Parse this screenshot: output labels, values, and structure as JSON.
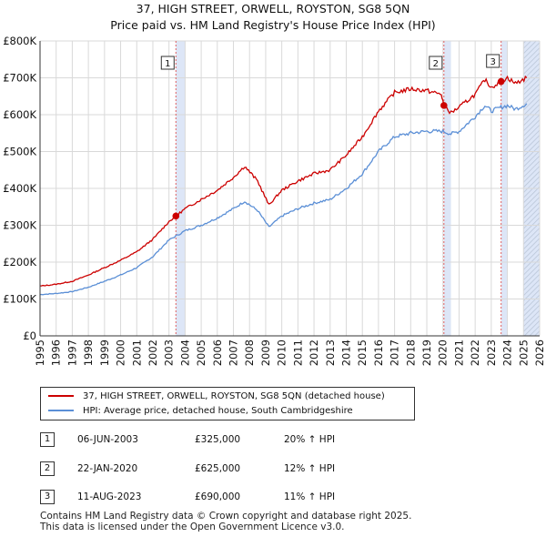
{
  "title_line1": "37, HIGH STREET, ORWELL, ROYSTON, SG8 5QN",
  "title_line2": "Price paid vs. HM Land Registry's House Price Index (HPI)",
  "chart_data": {
    "type": "line",
    "xlim": [
      1995,
      2026
    ],
    "ylim": [
      0,
      800000
    ],
    "y_ticks": [
      0,
      100000,
      200000,
      300000,
      400000,
      500000,
      600000,
      700000,
      800000
    ],
    "y_tick_labels": [
      "£0",
      "£100K",
      "£200K",
      "£300K",
      "£400K",
      "£500K",
      "£600K",
      "£700K",
      "£800K"
    ],
    "x_ticks": [
      "1995",
      "1996",
      "1997",
      "1998",
      "1999",
      "2000",
      "2001",
      "2002",
      "2003",
      "2004",
      "2005",
      "2006",
      "2007",
      "2008",
      "2009",
      "2010",
      "2011",
      "2012",
      "2013",
      "2014",
      "2015",
      "2016",
      "2017",
      "2018",
      "2019",
      "2020",
      "2021",
      "2022",
      "2023",
      "2024",
      "2025",
      "2026"
    ],
    "grid": true,
    "colors": {
      "property": "#cc0000",
      "hpi": "#5b8fd6",
      "shade": "#dde6f7",
      "hatch": "#b8c4d6",
      "vline": "#e06060",
      "grid": "#d9d9d9"
    },
    "series": [
      {
        "name": "37, HIGH STREET, ORWELL, ROYSTON, SG8 5QN (detached house)",
        "x": [
          1995.0,
          1996.0,
          1997.0,
          1998.0,
          1999.0,
          2000.0,
          2001.0,
          2002.0,
          2003.0,
          2003.43,
          2004.0,
          2005.0,
          2006.0,
          2007.0,
          2007.7,
          2008.5,
          2009.2,
          2010.0,
          2011.0,
          2012.0,
          2013.0,
          2014.0,
          2015.0,
          2016.0,
          2017.0,
          2018.0,
          2019.0,
          2019.9,
          2020.06,
          2020.5,
          2021.0,
          2022.0,
          2022.6,
          2023.0,
          2023.61,
          2024.0,
          2024.5,
          2025.2
        ],
        "values": [
          135000,
          140000,
          148000,
          165000,
          185000,
          205000,
          228000,
          262000,
          310000,
          325000,
          345000,
          370000,
          395000,
          430000,
          460000,
          420000,
          355000,
          395000,
          420000,
          440000,
          450000,
          490000,
          540000,
          610000,
          660000,
          670000,
          665000,
          655000,
          625000,
          605000,
          620000,
          655000,
          695000,
          675000,
          690000,
          700000,
          685000,
          700000
        ]
      },
      {
        "name": "HPI: Average price, detached house, South Cambridgeshire",
        "x": [
          1995.0,
          1996.0,
          1997.0,
          1998.0,
          1999.0,
          2000.0,
          2001.0,
          2002.0,
          2003.0,
          2004.0,
          2005.0,
          2006.0,
          2007.0,
          2007.7,
          2008.5,
          2009.2,
          2010.0,
          2011.0,
          2012.0,
          2013.0,
          2014.0,
          2015.0,
          2016.0,
          2017.0,
          2018.0,
          2019.0,
          2020.0,
          2020.5,
          2021.0,
          2022.0,
          2022.6,
          2023.0,
          2023.6,
          2024.0,
          2024.5,
          2025.2
        ],
        "values": [
          112000,
          115000,
          120000,
          132000,
          148000,
          165000,
          185000,
          215000,
          260000,
          285000,
          300000,
          320000,
          345000,
          365000,
          340000,
          295000,
          325000,
          345000,
          360000,
          370000,
          400000,
          440000,
          500000,
          540000,
          550000,
          555000,
          555000,
          548000,
          555000,
          595000,
          625000,
          610000,
          620000,
          625000,
          615000,
          630000
        ]
      }
    ],
    "sales": [
      {
        "label": "1",
        "x": 2003.43,
        "value": 325000
      },
      {
        "label": "2",
        "x": 2020.06,
        "value": 625000
      },
      {
        "label": "3",
        "x": 2023.61,
        "value": 690000
      }
    ],
    "shaded_ranges": [
      [
        2003.43,
        2004.0
      ],
      [
        2020.06,
        2020.5
      ],
      [
        2023.61,
        2024.0
      ]
    ],
    "hatch_from": 2025.0
  },
  "legend": {
    "property_label": "37, HIGH STREET, ORWELL, ROYSTON, SG8 5QN (detached house)",
    "hpi_label": "HPI: Average price, detached house, South Cambridgeshire"
  },
  "sales_table": [
    {
      "num": "1",
      "date": "06-JUN-2003",
      "price": "£325,000",
      "hpi": "20% ↑ HPI"
    },
    {
      "num": "2",
      "date": "22-JAN-2020",
      "price": "£625,000",
      "hpi": "12% ↑ HPI"
    },
    {
      "num": "3",
      "date": "11-AUG-2023",
      "price": "£690,000",
      "hpi": "11% ↑ HPI"
    }
  ],
  "footer_line1": "Contains HM Land Registry data © Crown copyright and database right 2025.",
  "footer_line2": "This data is licensed under the Open Government Licence v3.0."
}
